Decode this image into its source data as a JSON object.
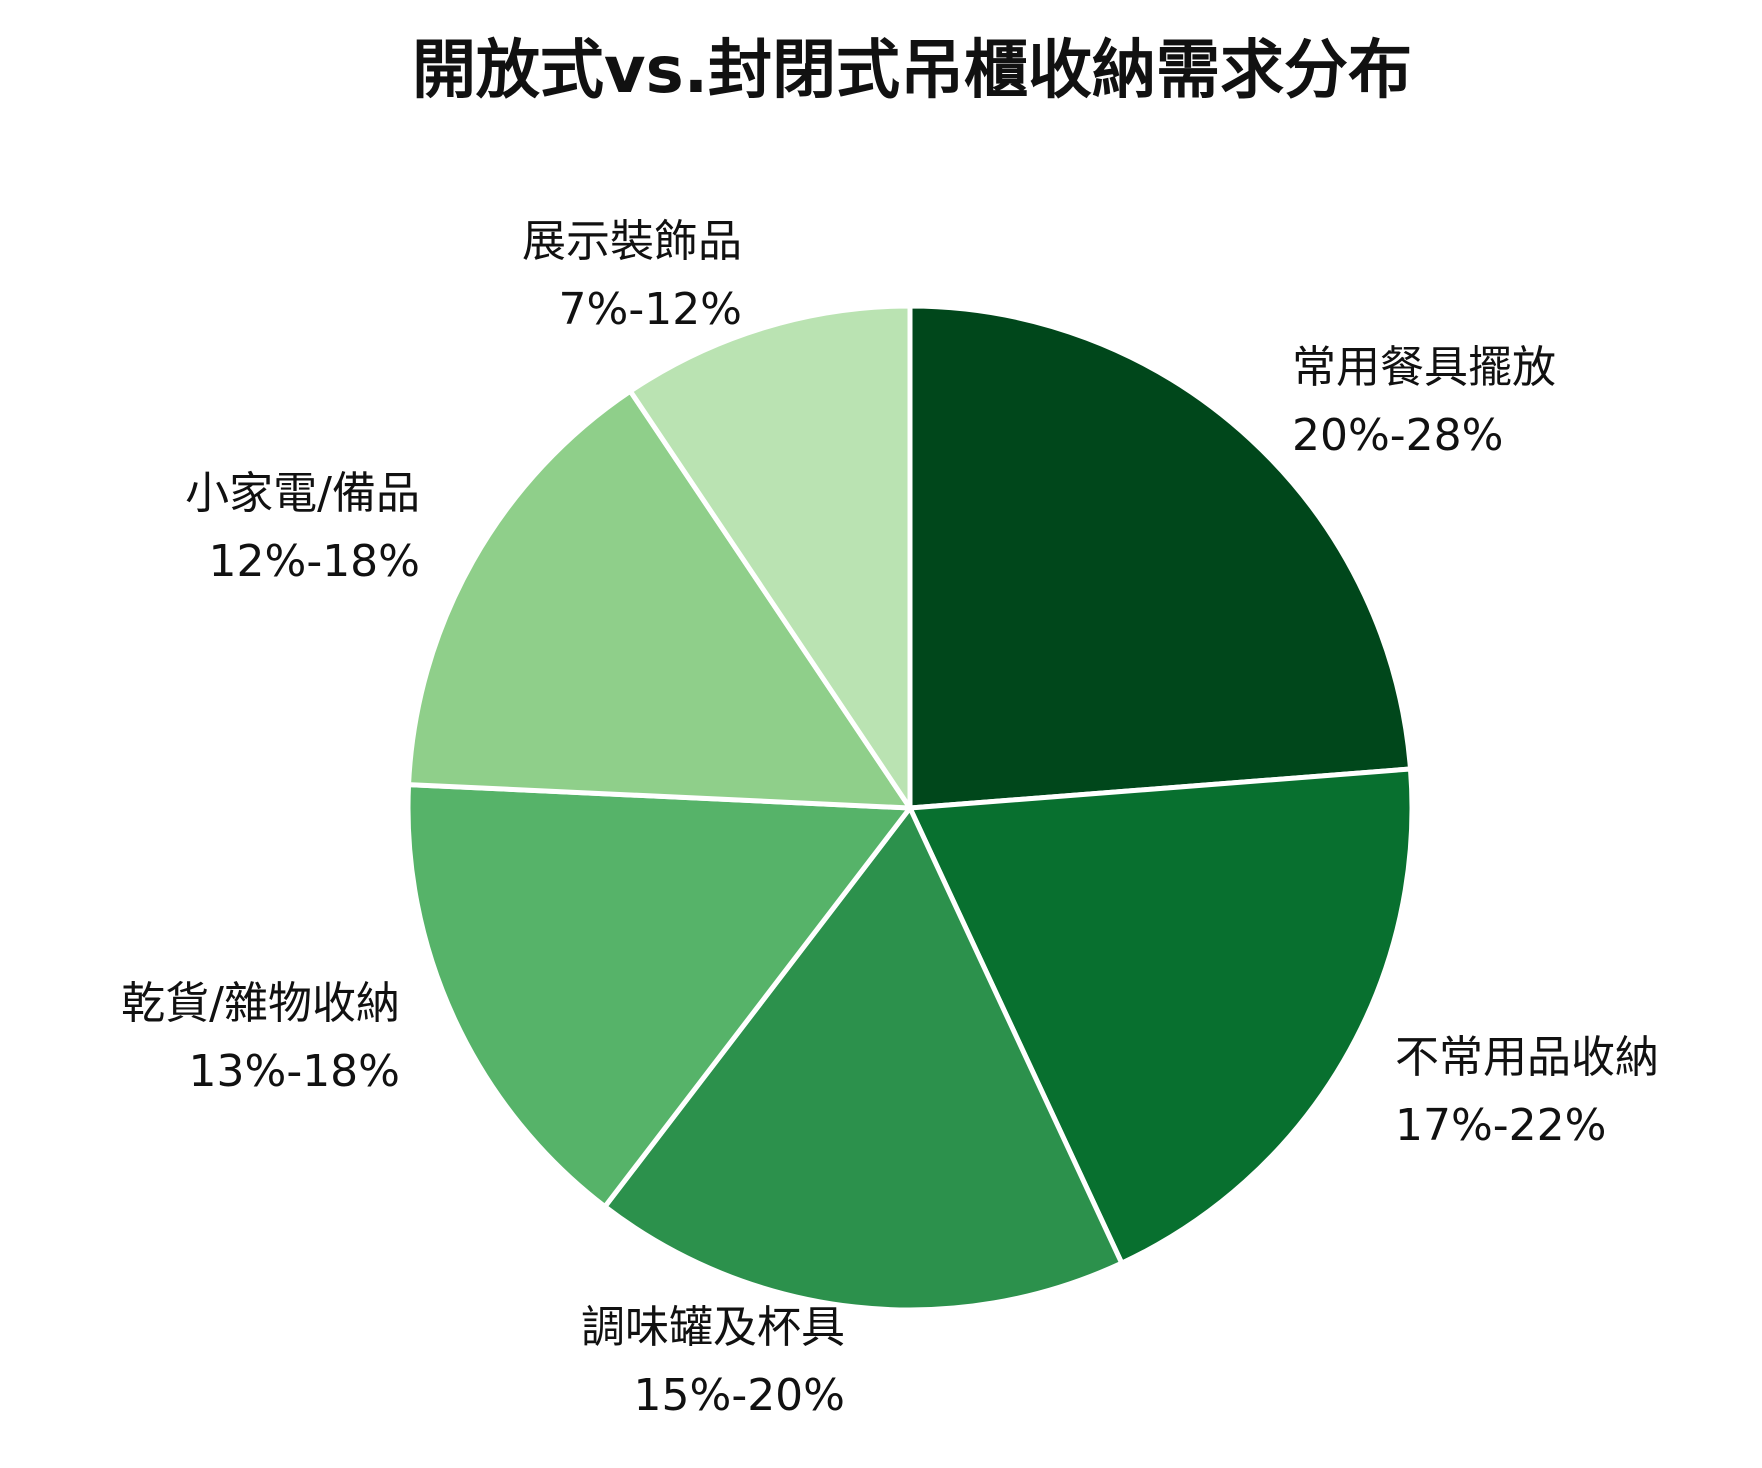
{
  "chart_data": {
    "type": "pie",
    "title": "開放式vs.封閉式吊櫃收納需求分布",
    "slices": [
      {
        "name": "常用餐具擺放",
        "range": "20%-28%",
        "value": 24,
        "color": "#00471b"
      },
      {
        "name": "不常用品收納",
        "range": "17%-22%",
        "value": 19.5,
        "color": "#08702f"
      },
      {
        "name": "調味罐及杯具",
        "range": "15%-20%",
        "value": 17.5,
        "color": "#2c914c"
      },
      {
        "name": "乾貨/雜物收納",
        "range": "13%-18%",
        "value": 15.5,
        "color": "#56b369"
      },
      {
        "name": "小家電/備品",
        "range": "12%-18%",
        "value": 15,
        "color": "#8fcf8a"
      },
      {
        "name": "展示裝飾品",
        "range": "7%-12%",
        "value": 9.5,
        "color": "#bae3b2"
      }
    ],
    "start_angle": "12 o'clock",
    "direction": "clockwise",
    "slice_border_color": "#ffffff"
  }
}
